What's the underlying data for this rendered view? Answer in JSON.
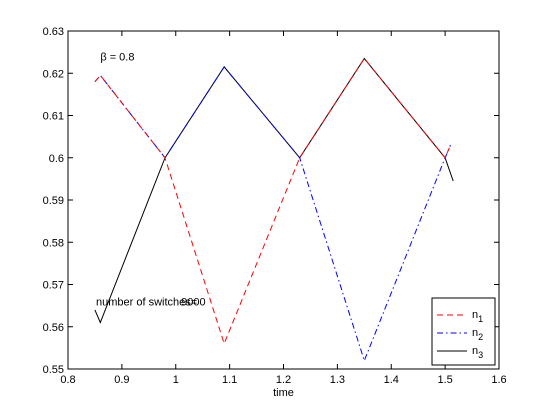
{
  "chart_data": {
    "type": "line",
    "title": "",
    "xlabel": "time",
    "ylabel": "",
    "xlim": [
      0.8,
      1.6
    ],
    "ylim": [
      0.55,
      0.63
    ],
    "xticks": [
      0.8,
      0.9,
      1.0,
      1.1,
      1.2,
      1.3,
      1.4,
      1.5,
      1.6
    ],
    "yticks": [
      0.55,
      0.56,
      0.57,
      0.58,
      0.59,
      0.6,
      0.61,
      0.62,
      0.63
    ],
    "xtick_labels": [
      "0.8",
      "0.9",
      "1",
      "1.1",
      "1.2",
      "1.3",
      "1.4",
      "1.5",
      "1.6"
    ],
    "ytick_labels": [
      "0.55",
      "0.56",
      "0.57",
      "0.58",
      "0.59",
      "0.6",
      "0.61",
      "0.62",
      "0.63"
    ],
    "grid": false,
    "legend_position": "bottom-right",
    "series": [
      {
        "name": "n",
        "subscript": "1",
        "color": "#ff0000",
        "dash": "dashed",
        "points": [
          [
            0.85,
            0.618
          ],
          [
            0.86,
            0.6195
          ],
          [
            0.98,
            0.6
          ],
          [
            1.09,
            0.556
          ],
          [
            1.23,
            0.6
          ],
          [
            1.35,
            0.6235
          ],
          [
            1.5,
            0.6
          ],
          [
            1.51,
            0.603
          ]
        ]
      },
      {
        "name": "n",
        "subscript": "2",
        "color": "#0000ff",
        "dash": "dashdot",
        "points": [
          [
            0.85,
            0.618
          ],
          [
            0.86,
            0.6195
          ],
          [
            0.98,
            0.6
          ],
          [
            1.09,
            0.6215
          ],
          [
            1.23,
            0.6
          ],
          [
            1.35,
            0.552
          ],
          [
            1.5,
            0.6
          ],
          [
            1.51,
            0.603
          ]
        ]
      },
      {
        "name": "n",
        "subscript": "3",
        "color": "#000000",
        "dash": "solid",
        "points": [
          [
            0.85,
            0.564
          ],
          [
            0.86,
            0.561
          ],
          [
            0.98,
            0.6
          ],
          [
            1.09,
            0.6215
          ],
          [
            1.23,
            0.6
          ],
          [
            1.35,
            0.6235
          ],
          [
            1.5,
            0.6
          ],
          [
            1.515,
            0.5945
          ]
        ]
      }
    ],
    "annotations": [
      {
        "text": "β = 0.8",
        "x": 0.86,
        "y": 0.623
      },
      {
        "text": "number of switches=",
        "x": 0.852,
        "y": 0.565
      },
      {
        "text": "9000",
        "x": 1.01,
        "y": 0.565
      }
    ]
  }
}
